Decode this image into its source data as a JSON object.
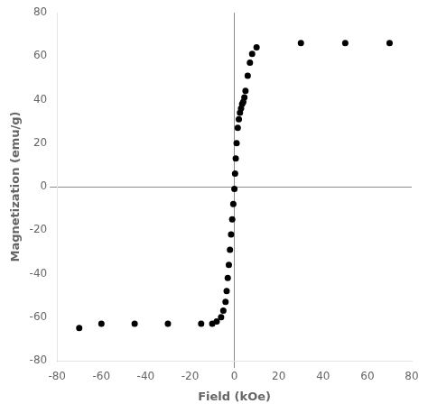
{
  "chart_data": {
    "type": "scatter",
    "xlabel": "Field (kOe)",
    "ylabel": "Magnetization (emu/g)",
    "x": [
      -70,
      -60,
      -45,
      -30,
      -15,
      -10,
      -8,
      -6,
      -5,
      -4,
      -3.5,
      -3,
      -2.5,
      -2,
      -1.5,
      -1,
      -0.5,
      0,
      0.3,
      0.6,
      1,
      1.5,
      2,
      2.5,
      3,
      3.5,
      4,
      4.5,
      5,
      6,
      7,
      8,
      10,
      30,
      50,
      70
    ],
    "values": [
      -65,
      -63,
      -63,
      -63,
      -63,
      -63,
      -62,
      -60,
      -57,
      -53,
      -48,
      -42,
      -36,
      -29,
      -22,
      -15,
      -8,
      -1,
      6,
      13,
      20,
      27,
      31,
      34,
      36,
      38,
      39,
      41,
      44,
      51,
      57,
      61,
      64,
      66,
      66,
      66
    ],
    "color": "#000000",
    "xlim": [
      -80,
      80
    ],
    "ylim": [
      -80,
      80
    ],
    "xticks": [
      -80,
      -60,
      -40,
      -20,
      0,
      20,
      40,
      60,
      80
    ],
    "yticks": [
      -80,
      -60,
      -40,
      -20,
      0,
      20,
      40,
      60,
      80
    ],
    "grid": false
  }
}
